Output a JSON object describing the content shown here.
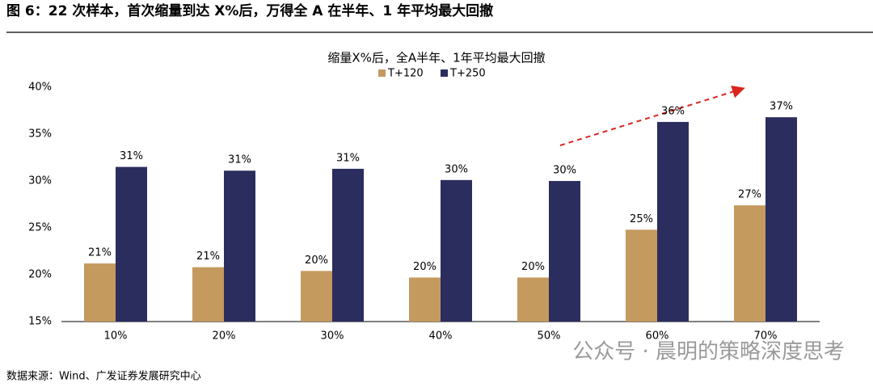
{
  "chart_data": {
    "type": "bar",
    "caption": "图 6：22 次样本，首次缩量到达 X%后，万得全 A 在半年、1 年平均最大回撤",
    "title": "缩量X%后，全A半年、1年平均最大回撤",
    "categories": [
      "10%",
      "20%",
      "30%",
      "40%",
      "50%",
      "60%",
      "70%"
    ],
    "series": [
      {
        "name": "T+120",
        "color": "#c49a5f",
        "values": [
          21.2,
          20.8,
          20.4,
          19.7,
          19.7,
          24.8,
          27.4
        ],
        "value_labels": [
          "21%",
          "21%",
          "20%",
          "20%",
          "20%",
          "25%",
          "27%"
        ]
      },
      {
        "name": "T+250",
        "color": "#2b2d5e",
        "values": [
          31.5,
          31.1,
          31.3,
          30.1,
          30.0,
          36.3,
          36.8
        ],
        "value_labels": [
          "31%",
          "31%",
          "31%",
          "30%",
          "30%",
          "36%",
          "37%"
        ]
      }
    ],
    "ylim": [
      15,
      40
    ],
    "yticks": [
      {
        "value": 15,
        "label": "15%"
      },
      {
        "value": 20,
        "label": "20%"
      },
      {
        "value": 25,
        "label": "25%"
      },
      {
        "value": 30,
        "label": "30%"
      },
      {
        "value": 35,
        "label": "35%"
      },
      {
        "value": 40,
        "label": "40%"
      }
    ],
    "grid": false,
    "source": "数据来源：Wind、广发证券发展研究中心",
    "watermark": "公众号 · 晨明的策略深度思考"
  }
}
